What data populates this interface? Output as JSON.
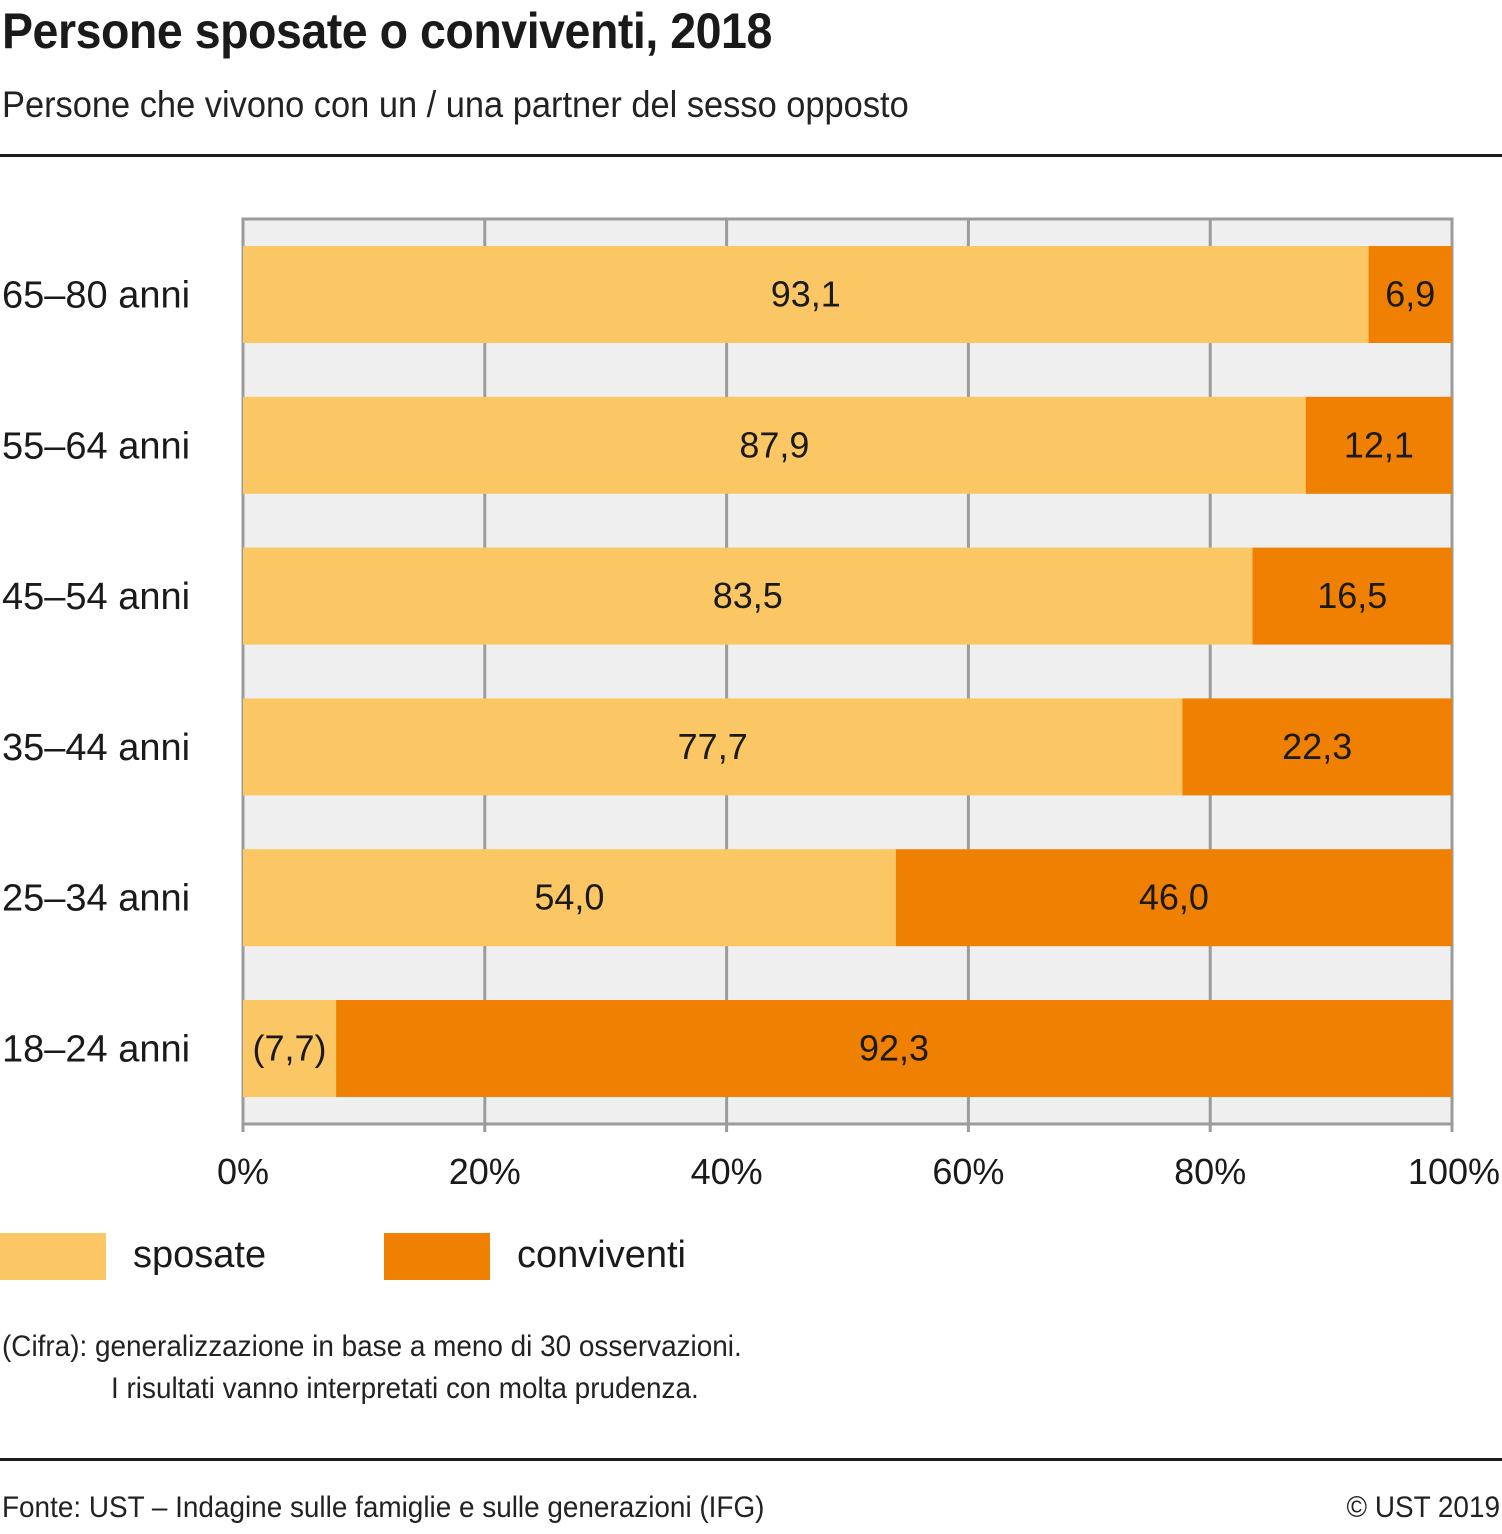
{
  "header": {
    "title": "Persone sposate o conviventi, 2018",
    "subtitle": "Persone che vivono con un / una partner del sesso opposto"
  },
  "colors": {
    "sposate": "#fbc664",
    "conviventi": "#f08002",
    "plot_background": "#efefef",
    "grid": "#9b9b9b",
    "text": "#1a1a1a"
  },
  "chart_data": {
    "type": "bar",
    "orientation": "horizontal",
    "stacked": true,
    "title": "Persone sposate o conviventi, 2018",
    "subtitle": "Persone che vivono con un / una partner del sesso opposto",
    "xlabel": "",
    "ylabel": "",
    "xlim": [
      0,
      100
    ],
    "x_ticks": [
      0,
      20,
      40,
      60,
      80,
      100
    ],
    "x_tick_labels": [
      "0%",
      "20%",
      "40%",
      "60%",
      "80%",
      "100%"
    ],
    "grid": true,
    "legend_position": "bottom-left",
    "categories": [
      "65–80 anni",
      "55–64 anni",
      "45–54 anni",
      "35–44 anni",
      "25–34 anni",
      "18–24 anni"
    ],
    "series": [
      {
        "name": "sposate",
        "color": "#fbc664",
        "values": [
          93.1,
          87.9,
          83.5,
          77.7,
          54.0,
          7.7
        ],
        "labels": [
          "93,1",
          "87,9",
          "83,5",
          "77,7",
          "54,0",
          "(7,7)"
        ]
      },
      {
        "name": "conviventi",
        "color": "#f08002",
        "values": [
          6.9,
          12.1,
          16.5,
          22.3,
          46.0,
          92.3
        ],
        "labels": [
          "6,9",
          "12,1",
          "16,5",
          "22,3",
          "46,0",
          "92,3"
        ]
      }
    ]
  },
  "legend": {
    "items": [
      {
        "label": "sposate",
        "color": "#fbc664"
      },
      {
        "label": "conviventi",
        "color": "#f08002"
      }
    ]
  },
  "notes": {
    "line1": "(Cifra): generalizzazione in base a meno di 30 osservazioni.",
    "line2": "I risultati vanno interpretati con molta prudenza."
  },
  "footer": {
    "source": "Fonte: UST – Indagine sulle famiglie e sulle generazioni (IFG)",
    "copyright": "© UST 2019"
  }
}
